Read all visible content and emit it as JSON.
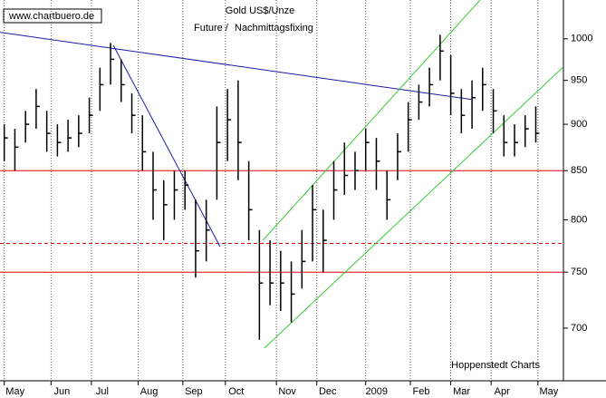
{
  "chart_data": {
    "type": "ohlc",
    "watermark": "www.chartbuero.de",
    "title": "Gold US$/Unze",
    "subtitle_parts": [
      {
        "text": "Future /",
        "color": "#000000"
      },
      {
        "text": "Nachmittagsfixing",
        "color": "#cc33cc"
      }
    ],
    "credit": "Hoppenstedt Charts",
    "log_scale": true,
    "xlim": [
      0,
      265
    ],
    "ylim": [
      656,
      1049
    ],
    "xticks": [
      {
        "value": 2,
        "label": "May"
      },
      {
        "value": 24,
        "label": "Jun"
      },
      {
        "value": 43,
        "label": "Jul"
      },
      {
        "value": 65,
        "label": "Aug"
      },
      {
        "value": 86,
        "label": "Sep"
      },
      {
        "value": 106,
        "label": "Oct"
      },
      {
        "value": 130,
        "label": "Nov"
      },
      {
        "value": 149,
        "label": "Dec"
      },
      {
        "value": 172,
        "label": "2009"
      },
      {
        "value": 193,
        "label": "Feb"
      },
      {
        "value": 212,
        "label": "Mar"
      },
      {
        "value": 231,
        "label": "Apr"
      },
      {
        "value": 253,
        "label": "May"
      }
    ],
    "yticks": [
      700,
      750,
      800,
      850,
      900,
      950,
      1000
    ],
    "grid": true,
    "color": "#000000",
    "x": [
      2,
      7,
      12,
      17,
      22,
      27,
      32,
      37,
      42,
      47,
      52,
      57,
      62,
      67,
      72,
      77,
      82,
      87,
      92,
      97,
      102,
      107,
      112,
      117,
      122,
      127,
      132,
      137,
      142,
      147,
      152,
      157,
      162,
      167,
      172,
      177,
      182,
      187,
      192,
      197,
      202,
      207,
      212,
      217,
      222,
      227,
      232,
      237,
      242,
      247,
      252
    ],
    "high": [
      900,
      895,
      915,
      940,
      915,
      900,
      905,
      910,
      930,
      965,
      995,
      975,
      935,
      910,
      870,
      840,
      850,
      850,
      820,
      820,
      920,
      940,
      950,
      860,
      790,
      780,
      770,
      760,
      790,
      835,
      810,
      860,
      880,
      870,
      895,
      885,
      850,
      890,
      925,
      945,
      965,
      1005,
      980,
      940,
      950,
      965,
      940,
      910,
      900,
      910,
      920
    ],
    "low": [
      860,
      850,
      880,
      895,
      870,
      865,
      870,
      875,
      890,
      915,
      945,
      925,
      890,
      850,
      800,
      780,
      800,
      810,
      745,
      760,
      820,
      860,
      840,
      780,
      690,
      720,
      715,
      705,
      735,
      760,
      750,
      800,
      825,
      830,
      850,
      830,
      800,
      840,
      870,
      905,
      920,
      950,
      910,
      890,
      895,
      915,
      890,
      865,
      865,
      875,
      880
    ],
    "close": [
      885,
      875,
      900,
      920,
      890,
      880,
      885,
      890,
      910,
      945,
      975,
      945,
      910,
      870,
      830,
      815,
      830,
      835,
      770,
      790,
      880,
      905,
      880,
      810,
      740,
      740,
      740,
      730,
      760,
      810,
      780,
      830,
      845,
      850,
      880,
      860,
      820,
      870,
      905,
      925,
      945,
      985,
      935,
      910,
      930,
      945,
      915,
      880,
      880,
      895,
      890
    ],
    "hlines": [
      {
        "value": 850,
        "color": "#e00000",
        "dash": false
      },
      {
        "value": 777,
        "color": "#e00000",
        "dash": true
      },
      {
        "value": 750,
        "color": "#e00000",
        "dash": false
      }
    ],
    "trendlines": [
      {
        "color": "#1a1aa8",
        "x": [
          0,
          221.6
        ],
        "y": [
          1008,
          928
        ]
      },
      {
        "color": "#1a1aa8",
        "x": [
          53.3,
          103.5
        ],
        "y": [
          992,
          774
        ]
      },
      {
        "color": "#33cc33",
        "x": [
          123.6,
          225.8
        ],
        "y": [
          780,
          1049
        ]
      },
      {
        "color": "#33cc33",
        "x": [
          124.4,
          265
        ],
        "y": [
          683,
          966
        ]
      }
    ]
  }
}
